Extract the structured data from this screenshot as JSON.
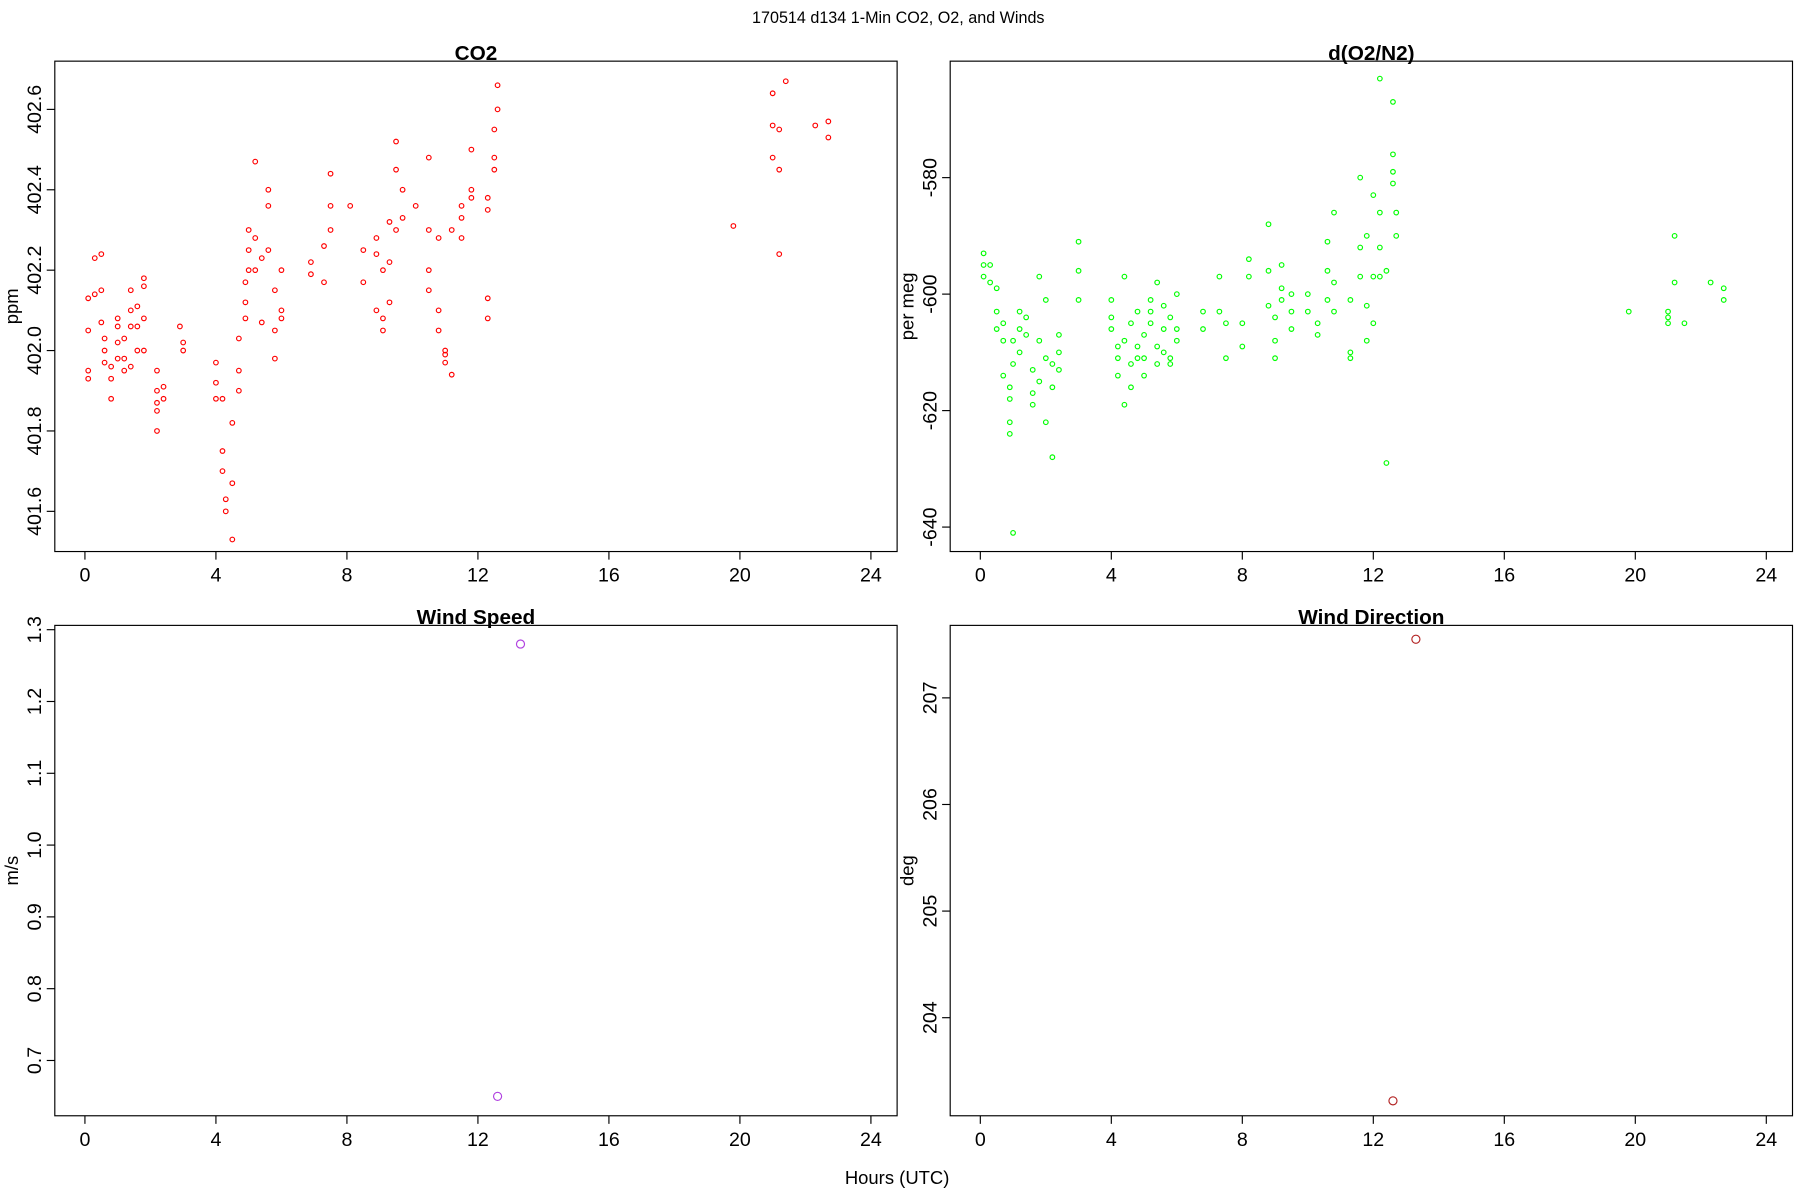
{
  "title": "170514   d134   1-Min CO2, O2, and Winds",
  "xlabel": "Hours (UTC)",
  "chart_data": [
    {
      "type": "scatter",
      "title": "CO2",
      "ylabel": "ppm",
      "xlim": [
        -0.92,
        24.8
      ],
      "xticks": [
        0,
        4,
        8,
        12,
        16,
        20,
        24
      ],
      "ylim": [
        401.5,
        402.72
      ],
      "yticks": [
        401.6,
        401.8,
        {
          "value": 402,
          "label": "402.0"
        },
        402.2,
        402.4,
        402.6
      ],
      "series": [
        {
          "color": "#ff0000",
          "x": [
            0.1,
            0.1,
            0.1,
            0.1,
            0.3,
            0.3,
            0.5,
            0.5,
            0.5,
            0.6,
            0.6,
            0.6,
            0.8,
            0.8,
            0.8,
            1.0,
            1.0,
            1.0,
            1.0,
            1.2,
            1.2,
            1.2,
            1.4,
            1.4,
            1.4,
            1.4,
            1.6,
            1.6,
            1.6,
            1.8,
            1.8,
            1.8,
            1.8,
            2.2,
            2.2,
            2.2,
            2.2,
            2.2,
            2.4,
            2.4,
            2.9,
            3.0,
            3.0,
            4.0,
            4.0,
            4.0,
            4.2,
            4.2,
            4.2,
            4.3,
            4.3,
            4.5,
            4.5,
            4.5,
            4.7,
            4.7,
            4.7,
            4.9,
            4.9,
            4.9,
            5.0,
            5.0,
            5.0,
            5.2,
            5.2,
            5.2,
            5.4,
            5.4,
            5.6,
            5.6,
            5.6,
            5.8,
            5.8,
            5.8,
            6.0,
            6.0,
            6.0,
            6.9,
            6.9,
            7.3,
            7.3,
            7.5,
            7.5,
            7.5,
            8.1,
            8.5,
            8.5,
            8.9,
            8.9,
            8.9,
            9.1,
            9.1,
            9.1,
            9.3,
            9.3,
            9.3,
            9.5,
            9.5,
            9.5,
            9.7,
            9.7,
            10.1,
            10.5,
            10.5,
            10.5,
            10.5,
            10.8,
            10.8,
            10.8,
            11.0,
            11.0,
            11.0,
            11.2,
            11.2,
            11.5,
            11.5,
            11.5,
            11.8,
            11.8,
            11.8,
            12.3,
            12.3,
            12.3,
            12.3,
            12.5,
            12.5,
            12.5,
            12.6,
            12.6,
            19.8,
            21.0,
            21.0,
            21.0,
            21.2,
            21.2,
            21.2,
            21.4,
            22.3,
            22.7,
            22.7
          ],
          "values": [
            401.93,
            401.95,
            402.05,
            402.13,
            402.14,
            402.23,
            402.24,
            402.15,
            402.07,
            401.97,
            402.0,
            402.03,
            401.93,
            401.88,
            401.96,
            402.06,
            402.08,
            402.02,
            401.98,
            401.95,
            401.98,
            402.03,
            402.1,
            402.15,
            402.06,
            401.96,
            402.11,
            402.06,
            402.0,
            402.18,
            402.16,
            402.08,
            402.0,
            401.9,
            401.85,
            401.8,
            401.87,
            401.95,
            401.88,
            401.91,
            402.06,
            402.02,
            402.0,
            401.88,
            401.92,
            401.97,
            401.88,
            401.75,
            401.7,
            401.63,
            401.6,
            401.53,
            401.67,
            401.82,
            401.9,
            401.95,
            402.03,
            402.08,
            402.12,
            402.17,
            402.2,
            402.25,
            402.3,
            402.47,
            402.28,
            402.2,
            402.23,
            402.07,
            402.36,
            402.25,
            402.4,
            402.15,
            402.05,
            401.98,
            402.1,
            402.08,
            402.2,
            402.22,
            402.19,
            402.26,
            402.17,
            402.3,
            402.36,
            402.44,
            402.36,
            402.17,
            402.25,
            402.1,
            402.24,
            402.28,
            402.08,
            402.05,
            402.2,
            402.32,
            402.22,
            402.12,
            402.45,
            402.52,
            402.3,
            402.4,
            402.33,
            402.36,
            402.48,
            402.3,
            402.2,
            402.15,
            402.1,
            402.05,
            402.28,
            401.99,
            401.97,
            402.0,
            401.94,
            402.3,
            402.28,
            402.33,
            402.36,
            402.4,
            402.5,
            402.38,
            402.08,
            402.13,
            402.35,
            402.38,
            402.45,
            402.48,
            402.55,
            402.6,
            402.66,
            402.31,
            402.64,
            402.56,
            402.48,
            402.24,
            402.45,
            402.55,
            402.67,
            402.56,
            402.57,
            402.53
          ]
        }
      ]
    },
    {
      "type": "scatter",
      "title": "d(O2/N2)",
      "ylabel": "per meg",
      "xlim": [
        -0.92,
        24.8
      ],
      "xticks": [
        0,
        4,
        8,
        12,
        16,
        20,
        24
      ],
      "ylim": [
        -644.2,
        -560
      ],
      "yticks": [
        -640,
        -620,
        -600,
        -580
      ],
      "series": [
        {
          "color": "#00ff00",
          "x": [
            0.1,
            0.1,
            0.1,
            0.3,
            0.3,
            0.5,
            0.5,
            0.5,
            0.7,
            0.7,
            0.7,
            0.9,
            0.9,
            0.9,
            0.9,
            1.0,
            1.0,
            1.0,
            1.2,
            1.2,
            1.2,
            1.4,
            1.4,
            1.6,
            1.6,
            1.6,
            1.8,
            1.8,
            1.8,
            2.0,
            2.0,
            2.0,
            2.2,
            2.2,
            2.2,
            2.4,
            2.4,
            2.4,
            3.0,
            3.0,
            3.0,
            4.0,
            4.0,
            4.0,
            4.2,
            4.2,
            4.2,
            4.4,
            4.4,
            4.4,
            4.6,
            4.6,
            4.6,
            4.8,
            4.8,
            4.8,
            5.0,
            5.0,
            5.0,
            5.2,
            5.2,
            5.2,
            5.4,
            5.4,
            5.4,
            5.6,
            5.6,
            5.6,
            5.8,
            5.8,
            5.8,
            6.0,
            6.0,
            6.0,
            6.8,
            6.8,
            7.3,
            7.3,
            7.5,
            7.5,
            8.0,
            8.0,
            8.2,
            8.2,
            8.8,
            8.8,
            8.8,
            9.0,
            9.0,
            9.0,
            9.2,
            9.2,
            9.2,
            9.5,
            9.5,
            9.5,
            10.0,
            10.0,
            10.3,
            10.3,
            10.6,
            10.6,
            10.6,
            10.8,
            10.8,
            10.8,
            11.3,
            11.3,
            11.3,
            11.6,
            11.6,
            11.6,
            11.8,
            11.8,
            11.8,
            12.0,
            12.0,
            12.0,
            12.2,
            12.2,
            12.2,
            12.2,
            12.4,
            12.4,
            12.6,
            12.6,
            12.6,
            12.6,
            12.7,
            12.7,
            19.8,
            21.0,
            21.0,
            21.0,
            21.2,
            21.2,
            21.5,
            22.3,
            22.7,
            22.7
          ],
          "values": [
            -593,
            -595,
            -597,
            -595,
            -598,
            -599,
            -603,
            -606,
            -605,
            -608,
            -614,
            -618,
            -622,
            -624,
            -616,
            -641,
            -612,
            -608,
            -603,
            -606,
            -610,
            -604,
            -607,
            -613,
            -617,
            -619,
            -608,
            -597,
            -615,
            -622,
            -611,
            -601,
            -628,
            -616,
            -612,
            -607,
            -610,
            -613,
            -601,
            -591,
            -596,
            -601,
            -604,
            -606,
            -609,
            -611,
            -614,
            -597,
            -608,
            -619,
            -612,
            -616,
            -605,
            -603,
            -609,
            -611,
            -614,
            -611,
            -607,
            -601,
            -605,
            -603,
            -598,
            -612,
            -609,
            -602,
            -606,
            -610,
            -604,
            -611,
            -612,
            -606,
            -600,
            -608,
            -603,
            -606,
            -597,
            -603,
            -611,
            -605,
            -605,
            -609,
            -594,
            -597,
            -588,
            -596,
            -602,
            -604,
            -608,
            -611,
            -601,
            -599,
            -595,
            -600,
            -603,
            -606,
            -600,
            -603,
            -605,
            -607,
            -601,
            -596,
            -591,
            -586,
            -598,
            -603,
            -601,
            -610,
            -611,
            -597,
            -592,
            -580,
            -602,
            -608,
            -590,
            -605,
            -597,
            -583,
            -563,
            -586,
            -592,
            -597,
            -629,
            -596,
            -567,
            -576,
            -579,
            -581,
            -586,
            -590,
            -603,
            -603,
            -604,
            -605,
            -590,
            -598,
            -605,
            -598,
            -599,
            -601
          ]
        }
      ]
    },
    {
      "type": "scatter",
      "title": "Wind Speed",
      "ylabel": "m/s",
      "xlim": [
        -0.92,
        24.8
      ],
      "xticks": [
        0,
        4,
        8,
        12,
        16,
        20,
        24
      ],
      "ylim": [
        0.623,
        1.306
      ],
      "yticks": [
        0.7,
        0.8,
        0.9,
        {
          "value": 1,
          "label": "1.0"
        },
        1.1,
        1.2,
        1.3
      ],
      "series": [
        {
          "color": "#b040e0",
          "x": [
            12.6,
            13.3
          ],
          "values": [
            0.65,
            1.28
          ]
        }
      ]
    },
    {
      "type": "scatter",
      "title": "Wind Direction",
      "ylabel": "deg",
      "xlim": [
        -0.92,
        24.8
      ],
      "xticks": [
        0,
        4,
        8,
        12,
        16,
        20,
        24
      ],
      "ylim": [
        203.08,
        207.68
      ],
      "yticks": [
        204,
        205,
        206,
        207
      ],
      "series": [
        {
          "color": "#b22222",
          "x": [
            12.6,
            13.3
          ],
          "values": [
            203.22,
            207.55
          ]
        }
      ]
    }
  ]
}
